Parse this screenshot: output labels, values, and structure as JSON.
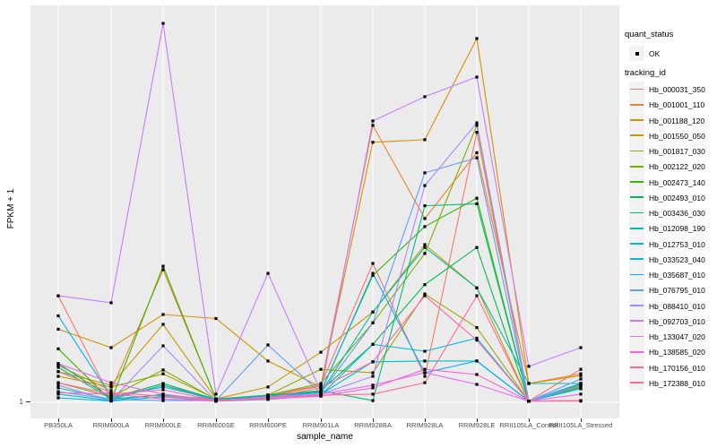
{
  "chart_data": {
    "type": "line",
    "title": "",
    "xlabel": "sample_name",
    "ylabel": "FPKM + 1",
    "y_scale": "log10",
    "y_axis_tick_labels": [
      "1"
    ],
    "grid": "vertical-major-and-baseline",
    "legend_position": "right",
    "point_shape": "small-black-square",
    "x_categories": [
      "PB350LA",
      "RRIM600LA",
      "RRIM600LE",
      "RRIM600SE",
      "RRIM600PE",
      "RRIM901LA",
      "RRIM928BA",
      "RRIM928LA",
      "RRIM928LE",
      "RRII105LA_Control",
      "RRII105LA_Stressed"
    ],
    "series": [
      {
        "name": "Hb_000031_350",
        "color": "#F8766D",
        "quant_status": "OK",
        "values": [
          6.2,
          1.06,
          1.34,
          1.06,
          1.13,
          1.34,
          10.8,
          1.56,
          102,
          1.02,
          1.76
        ]
      },
      {
        "name": "Hb_001001_110",
        "color": "#EA8331",
        "quant_status": "OK",
        "values": [
          1.88,
          1.22,
          9.7,
          1.06,
          1.11,
          1.32,
          115,
          23.3,
          72,
          1.38,
          1.63
        ]
      },
      {
        "name": "Hb_001188_120",
        "color": "#D89000",
        "quant_status": "OK",
        "values": [
          3.5,
          2.55,
          4.5,
          4.2,
          2.03,
          1.3,
          86,
          90,
          509,
          1.38,
          1.58
        ]
      },
      {
        "name": "Hb_001550_050",
        "color": "#C09B00",
        "quant_status": "OK",
        "values": [
          1.69,
          1.34,
          3.8,
          1.06,
          1.3,
          2.36,
          4.7,
          14.9,
          7.1,
          1.02,
          1.34
        ]
      },
      {
        "name": "Hb_001817_030",
        "color": "#A3A500",
        "quant_status": "OK",
        "values": [
          1.56,
          1.3,
          1.63,
          1.06,
          1.13,
          1.76,
          1.66,
          6.4,
          3.6,
          1.02,
          1.32
        ]
      },
      {
        "name": "Hb_002122_020",
        "color": "#7CAE00",
        "quant_status": "OK",
        "values": [
          1.4,
          1.1,
          1.74,
          1.05,
          1.13,
          1.38,
          3.9,
          12.8,
          115,
          1.02,
          1.3
        ]
      },
      {
        "name": "Hb_002473_140",
        "color": "#39B600",
        "quant_status": "OK",
        "values": [
          2.5,
          1.03,
          10.3,
          1.05,
          1.13,
          1.2,
          8.8,
          20.3,
          33,
          1.02,
          1.38
        ]
      },
      {
        "name": "Hb_002493_010",
        "color": "#00BB4E",
        "quant_status": "OK",
        "values": [
          1.94,
          1.08,
          1.38,
          1.05,
          1.11,
          1.22,
          2.7,
          7.5,
          14.2,
          1.02,
          1.36
        ]
      },
      {
        "name": "Hb_003436_030",
        "color": "#00BF7D",
        "quant_status": "OK",
        "values": [
          1.82,
          1.06,
          1.13,
          1.05,
          1.13,
          1.22,
          1.03,
          29,
          30,
          1.02,
          1.38
        ]
      },
      {
        "name": "Hb_012098_190",
        "color": "#00C1A3",
        "quant_status": "OK",
        "values": [
          1.28,
          1.05,
          1.34,
          1.03,
          1.1,
          1.18,
          4.7,
          14.2,
          7.1,
          1.38,
          1.38
        ]
      },
      {
        "name": "Hb_012753_010",
        "color": "#00BFC4",
        "quant_status": "OK",
        "values": [
          1.15,
          1.03,
          1.15,
          1.03,
          1.08,
          1.15,
          2.0,
          2.03,
          2.03,
          1.02,
          1.28
        ]
      },
      {
        "name": "Hb_033523_040",
        "color": "#00BAE0",
        "quant_status": "OK",
        "values": [
          1.08,
          1.02,
          1.1,
          1.02,
          1.05,
          1.13,
          2.7,
          2.4,
          3.0,
          1.02,
          1.26
        ]
      },
      {
        "name": "Hb_035687_010",
        "color": "#00B0F6",
        "quant_status": "OK",
        "values": [
          4.4,
          1.1,
          1.3,
          1.05,
          1.11,
          1.18,
          9.1,
          1.66,
          2.03,
          1.02,
          1.38
        ]
      },
      {
        "name": "Hb_076795_010",
        "color": "#619CFF",
        "quant_status": "OK",
        "values": [
          1.2,
          1.05,
          1.03,
          1.03,
          2.67,
          1.17,
          3.9,
          51,
          66,
          1.02,
          1.49
        ]
      },
      {
        "name": "Hb_088410_010",
        "color": "#A58AFF",
        "quant_status": "OK",
        "values": [
          1.34,
          1.03,
          2.63,
          1.03,
          1.1,
          1.15,
          1.56,
          41,
          120,
          1.02,
          1.34
        ]
      },
      {
        "name": "Hb_092703_010",
        "color": "#C77CFF",
        "quant_status": "OK",
        "values": [
          6.2,
          5.5,
          660,
          1.15,
          9.1,
          1.2,
          124,
          188,
          263,
          1.85,
          2.55
        ]
      },
      {
        "name": "Hb_133047_020",
        "color": "#E76BF3",
        "quant_status": "OK",
        "values": [
          1.94,
          1.4,
          1.15,
          1.03,
          1.08,
          1.15,
          1.34,
          1.66,
          1.36,
          1.02,
          1.15
        ]
      },
      {
        "name": "Hb_138585_020",
        "color": "#FD61D1",
        "quant_status": "OK",
        "values": [
          1.18,
          1.15,
          1.06,
          1.02,
          1.06,
          1.11,
          1.28,
          1.76,
          1.61,
          1.02,
          1.03
        ]
      },
      {
        "name": "Hb_170156_010",
        "color": "#FF67A4",
        "quant_status": "OK",
        "values": [
          1.4,
          1.15,
          1.24,
          1.03,
          1.08,
          1.28,
          2.0,
          6.2,
          2.9,
          1.02,
          1.02
        ]
      },
      {
        "name": "Hb_172388_010",
        "color": "#FF6C90",
        "quant_status": "OK",
        "values": [
          1.69,
          1.18,
          1.11,
          1.03,
          1.06,
          1.13,
          1.15,
          1.4,
          6.2,
          1.02,
          1.03
        ]
      }
    ]
  },
  "legends": {
    "quant": {
      "title": "quant_status",
      "items": [
        {
          "label": "OK"
        }
      ]
    },
    "tracking": {
      "title": "tracking_id"
    }
  },
  "colors": {
    "panel_background": "#EBEBEB",
    "gridline": "#FFFFFF",
    "point": "#000000",
    "tick_label": "#4D4D4D",
    "legend_key_background": "#F2F2F2"
  }
}
